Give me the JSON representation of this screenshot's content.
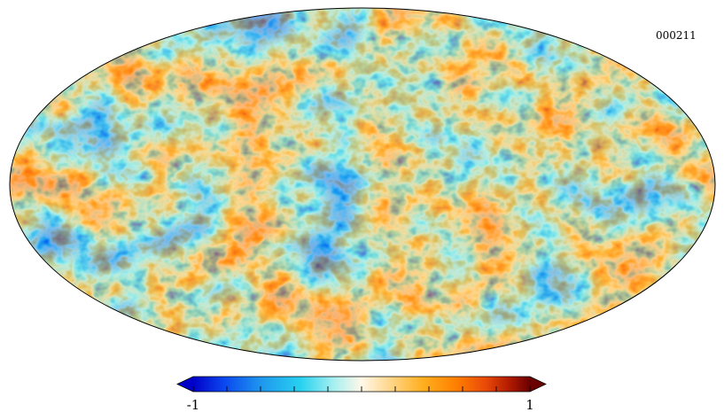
{
  "map": {
    "label": "000211",
    "projection": "mollweide",
    "description_colormap": [
      "#0000c8",
      "#0a46ee",
      "#1e96ee",
      "#28d2f0",
      "#aaf0f0",
      "#fff8e8",
      "#ffd890",
      "#ffb020",
      "#ff8000",
      "#e84808",
      "#b01a00",
      "#6a0000"
    ]
  },
  "colorbar": {
    "min_label": "-1",
    "max_label": "1",
    "min_value": -1,
    "max_value": 1,
    "tick_count": 11,
    "extend": "both"
  }
}
